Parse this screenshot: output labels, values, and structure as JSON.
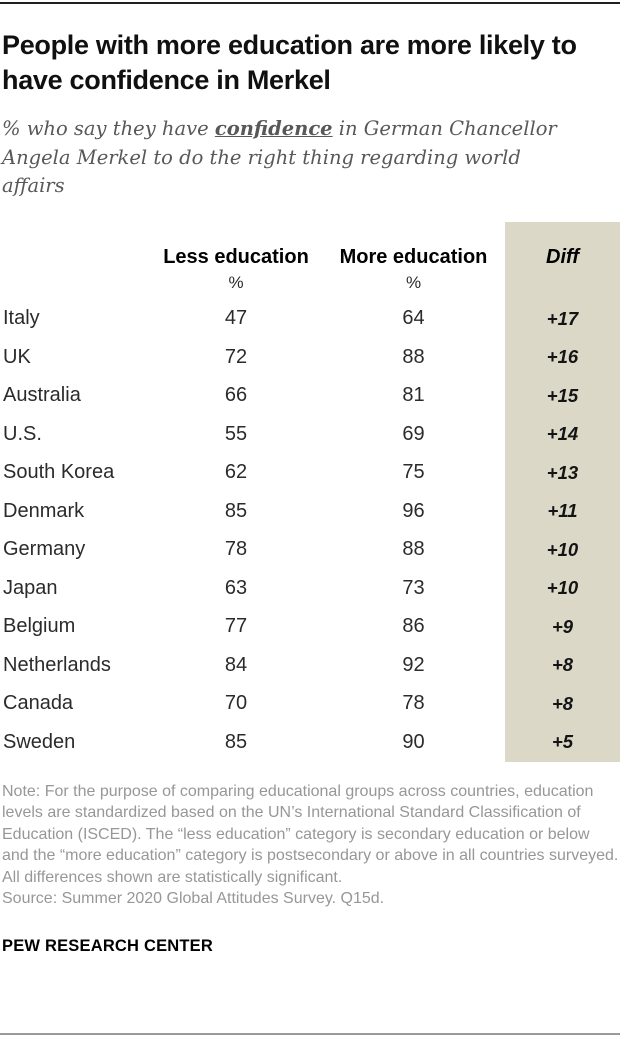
{
  "header": {
    "title": "People with more education are more likely to have confidence in Merkel",
    "subtitle_prefix": "% who say they have ",
    "subtitle_emphasis": "confidence",
    "subtitle_suffix": " in German Chancellor Angela Merkel to do the right thing regarding world affairs"
  },
  "table": {
    "col_less": "Less education",
    "col_more": "More education",
    "col_diff": "Diff",
    "unit_label": "%",
    "rows": [
      {
        "country": "Italy",
        "less": "47",
        "more": "64",
        "diff": "+17"
      },
      {
        "country": "UK",
        "less": "72",
        "more": "88",
        "diff": "+16"
      },
      {
        "country": "Australia",
        "less": "66",
        "more": "81",
        "diff": "+15"
      },
      {
        "country": "U.S.",
        "less": "55",
        "more": "69",
        "diff": "+14"
      },
      {
        "country": "South Korea",
        "less": "62",
        "more": "75",
        "diff": "+13"
      },
      {
        "country": "Denmark",
        "less": "85",
        "more": "96",
        "diff": "+11"
      },
      {
        "country": "Germany",
        "less": "78",
        "more": "88",
        "diff": "+10"
      },
      {
        "country": "Japan",
        "less": "63",
        "more": "73",
        "diff": "+10"
      },
      {
        "country": "Belgium",
        "less": "77",
        "more": "86",
        "diff": "+9"
      },
      {
        "country": "Netherlands",
        "less": "84",
        "more": "92",
        "diff": "+8"
      },
      {
        "country": "Canada",
        "less": "70",
        "more": "78",
        "diff": "+8"
      },
      {
        "country": "Sweden",
        "less": "85",
        "more": "90",
        "diff": "+5"
      }
    ]
  },
  "footer": {
    "note": "Note: For the purpose of comparing educational groups across countries, education levels are standardized based on the UN’s International Standard Classification of Education (ISCED). The “less education” category is secondary education or below and the “more education” category is postsecondary or above in all countries surveyed. All differences shown are statistically significant.",
    "source": "Source: Summer 2020 Global Attitudes Survey. Q15d.",
    "brand": "PEW RESEARCH CENTER"
  },
  "colors": {
    "diff_column_bg": "#dbd8c7",
    "title_text": "#101010",
    "subtitle_text": "#58585a",
    "note_text": "#979799",
    "top_rule": "#1f1f1f",
    "bottom_rule": "#9a9a9a"
  },
  "chart_data": {
    "type": "table",
    "title": "People with more education are more likely to have confidence in Merkel",
    "subtitle": "% who say they have confidence in German Chancellor Angela Merkel to do the right thing regarding world affairs",
    "units": "%",
    "categories": [
      "Italy",
      "UK",
      "Australia",
      "U.S.",
      "South Korea",
      "Denmark",
      "Germany",
      "Japan",
      "Belgium",
      "Netherlands",
      "Canada",
      "Sweden"
    ],
    "series": [
      {
        "name": "Less education",
        "values": [
          47,
          72,
          66,
          55,
          62,
          85,
          78,
          63,
          77,
          84,
          70,
          85
        ]
      },
      {
        "name": "More education",
        "values": [
          64,
          88,
          81,
          69,
          75,
          96,
          88,
          73,
          86,
          92,
          78,
          90
        ]
      },
      {
        "name": "Diff",
        "values": [
          17,
          16,
          15,
          14,
          13,
          11,
          10,
          10,
          9,
          8,
          8,
          5
        ]
      }
    ],
    "note": "Sorted descending by Diff; Diff column highlighted with tan background"
  }
}
